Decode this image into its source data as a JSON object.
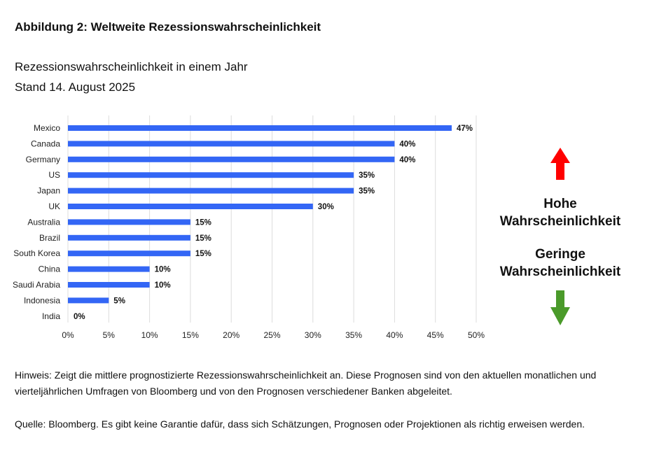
{
  "figure_label": "Abbildung 2: Weltweite Rezessionswahrscheinlichkeit",
  "chart_data": {
    "type": "bar",
    "orientation": "horizontal",
    "title": "Rezessionswahrscheinlichkeit in einem Jahr",
    "subtitle": "Stand 14. August 2025",
    "categories": [
      "Mexico",
      "Canada",
      "Germany",
      "US",
      "Japan",
      "UK",
      "Australia",
      "Brazil",
      "South Korea",
      "China",
      "Saudi Arabia",
      "Indonesia",
      "India"
    ],
    "values": [
      47,
      40,
      40,
      35,
      35,
      30,
      15,
      15,
      15,
      10,
      10,
      5,
      0
    ],
    "data_labels": [
      "47%",
      "40%",
      "40%",
      "35%",
      "35%",
      "30%",
      "15%",
      "15%",
      "15%",
      "10%",
      "10%",
      "5%",
      "0%"
    ],
    "xlim": [
      0,
      50
    ],
    "xticks": [
      "0%",
      "5%",
      "10%",
      "15%",
      "20%",
      "25%",
      "30%",
      "35%",
      "40%",
      "45%",
      "50%"
    ],
    "grid": true,
    "bar_color": "#3366f5"
  },
  "legend": {
    "high": "Hohe Wahrscheinlichkeit",
    "low": "Geringe Wahrscheinlichkeit",
    "high_color": "#ff0000",
    "low_color": "#4a9a2a"
  },
  "note": "Hinweis: Zeigt die mittlere prognostizierte Rezessionswahrscheinlichkeit an. Diese Prognosen sind von den aktuellen monatlichen und vierteljährlichen Umfragen von Bloomberg und von den Prognosen verschiedener Banken abgeleitet.",
  "source": "Quelle: Bloomberg. Es gibt keine Garantie dafür, dass sich Schätzungen, Prognosen oder Projektionen als richtig erweisen werden."
}
